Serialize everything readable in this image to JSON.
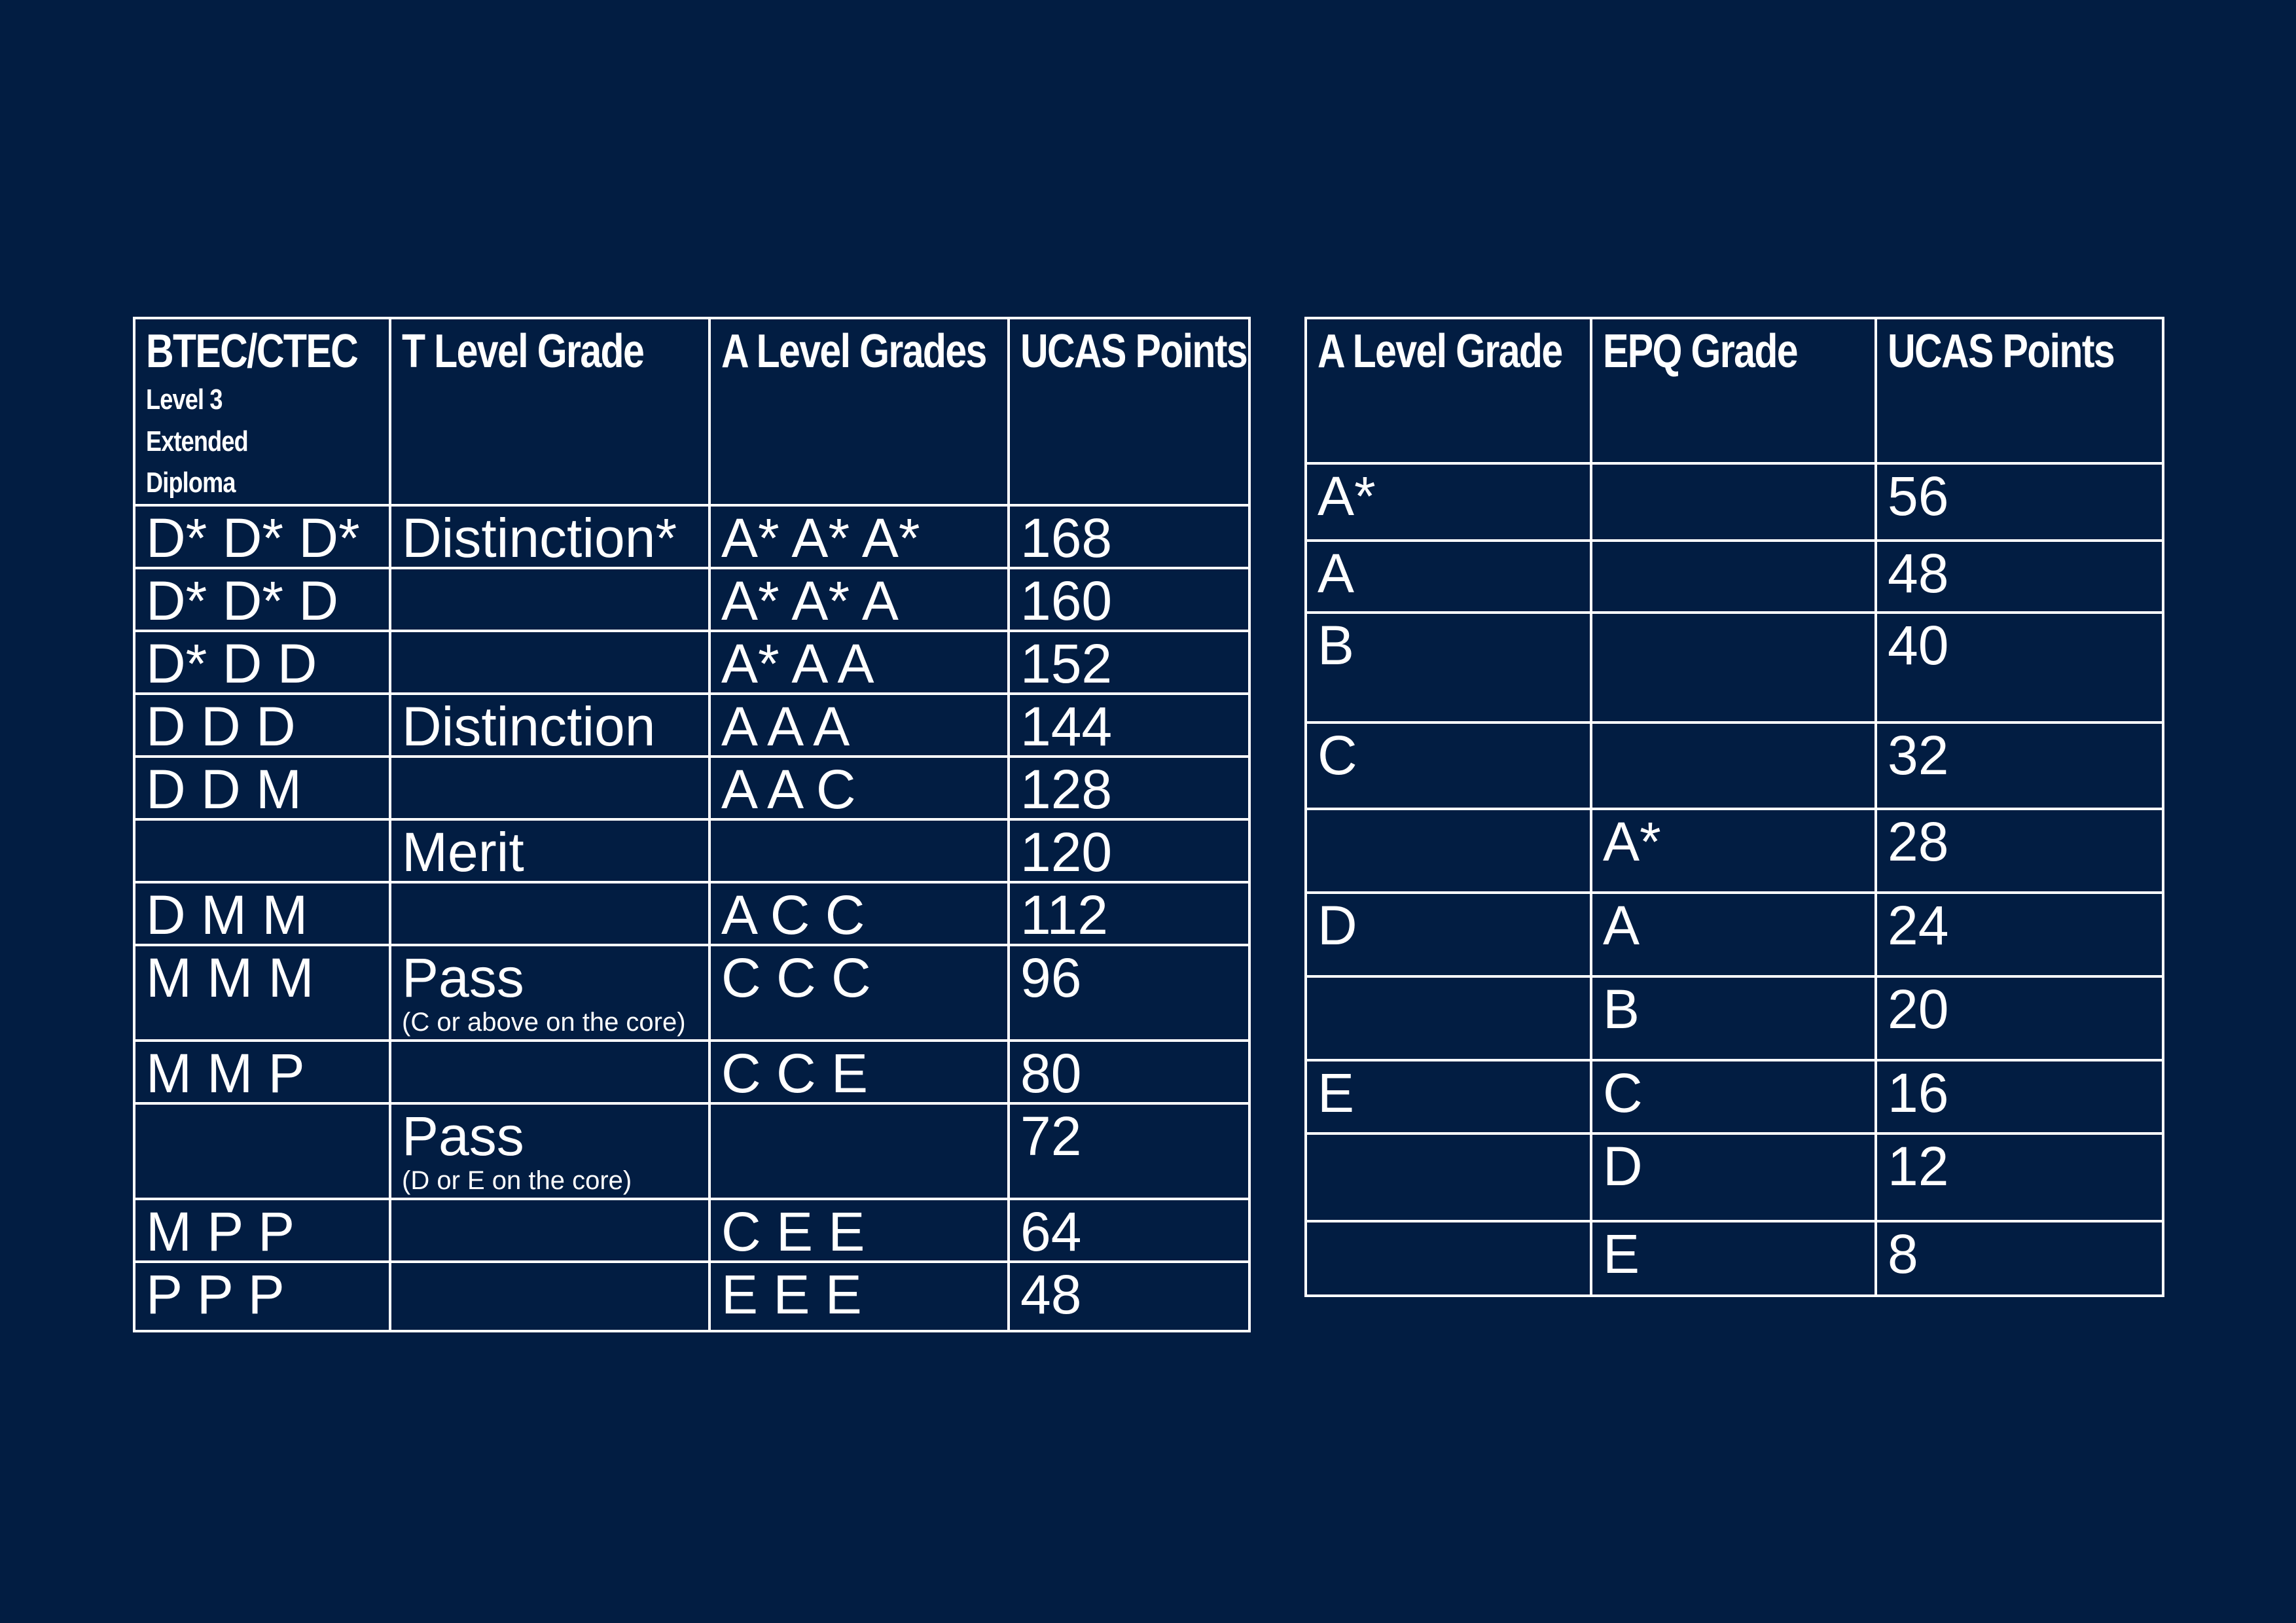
{
  "left_table": {
    "headers": {
      "btec": "BTEC/CTEC",
      "btec_sub": "Level 3 Extended Diploma",
      "t_level": "T Level Grade",
      "a_level": "A Level Grades",
      "ucas": "UCAS Points"
    },
    "rows": [
      {
        "btec": "D* D* D*",
        "t_level": "Distinction*",
        "t_level_note": "",
        "a_level": "A* A* A*",
        "ucas": "168"
      },
      {
        "btec": "D* D* D",
        "t_level": "",
        "t_level_note": "",
        "a_level": "A* A* A",
        "ucas": "160"
      },
      {
        "btec": "D* D D",
        "t_level": "",
        "t_level_note": "",
        "a_level": "A* A A",
        "ucas": "152"
      },
      {
        "btec": "D D D",
        "t_level": "Distinction",
        "t_level_note": "",
        "a_level": "A A A",
        "ucas": "144"
      },
      {
        "btec": "D D M",
        "t_level": "",
        "t_level_note": "",
        "a_level": "A A C",
        "ucas": "128"
      },
      {
        "btec": "",
        "t_level": "Merit",
        "t_level_note": "",
        "a_level": "",
        "ucas": "120"
      },
      {
        "btec": "D M M",
        "t_level": "",
        "t_level_note": "",
        "a_level": "A C C",
        "ucas": "112"
      },
      {
        "btec": "M M M",
        "t_level": "Pass",
        "t_level_note": "(C or above on the core)",
        "a_level": "C C C",
        "ucas": "96"
      },
      {
        "btec": "M M P",
        "t_level": "",
        "t_level_note": "",
        "a_level": "C C E",
        "ucas": "80"
      },
      {
        "btec": "",
        "t_level": "Pass",
        "t_level_note": "(D or E on the core)",
        "a_level": "",
        "ucas": "72"
      },
      {
        "btec": "M P P",
        "t_level": "",
        "t_level_note": "",
        "a_level": "C E E",
        "ucas": "64"
      },
      {
        "btec": "P P P",
        "t_level": "",
        "t_level_note": "",
        "a_level": "E E E",
        "ucas": "48"
      }
    ]
  },
  "right_table": {
    "headers": {
      "a_level": "A Level Grade",
      "epq": "EPQ Grade",
      "ucas": "UCAS Points"
    },
    "rows": [
      {
        "a_level": "A*",
        "epq": "",
        "ucas": "56"
      },
      {
        "a_level": "A",
        "epq": "",
        "ucas": "48"
      },
      {
        "a_level": "B",
        "epq": "",
        "ucas": "40"
      },
      {
        "a_level": "C",
        "epq": "",
        "ucas": "32"
      },
      {
        "a_level": "",
        "epq": "A*",
        "ucas": "28"
      },
      {
        "a_level": "D",
        "epq": "A",
        "ucas": "24"
      },
      {
        "a_level": "",
        "epq": "B",
        "ucas": "20"
      },
      {
        "a_level": "E",
        "epq": "C",
        "ucas": "16"
      },
      {
        "a_level": "",
        "epq": "D",
        "ucas": "12"
      },
      {
        "a_level": "",
        "epq": "E",
        "ucas": "8"
      }
    ]
  }
}
